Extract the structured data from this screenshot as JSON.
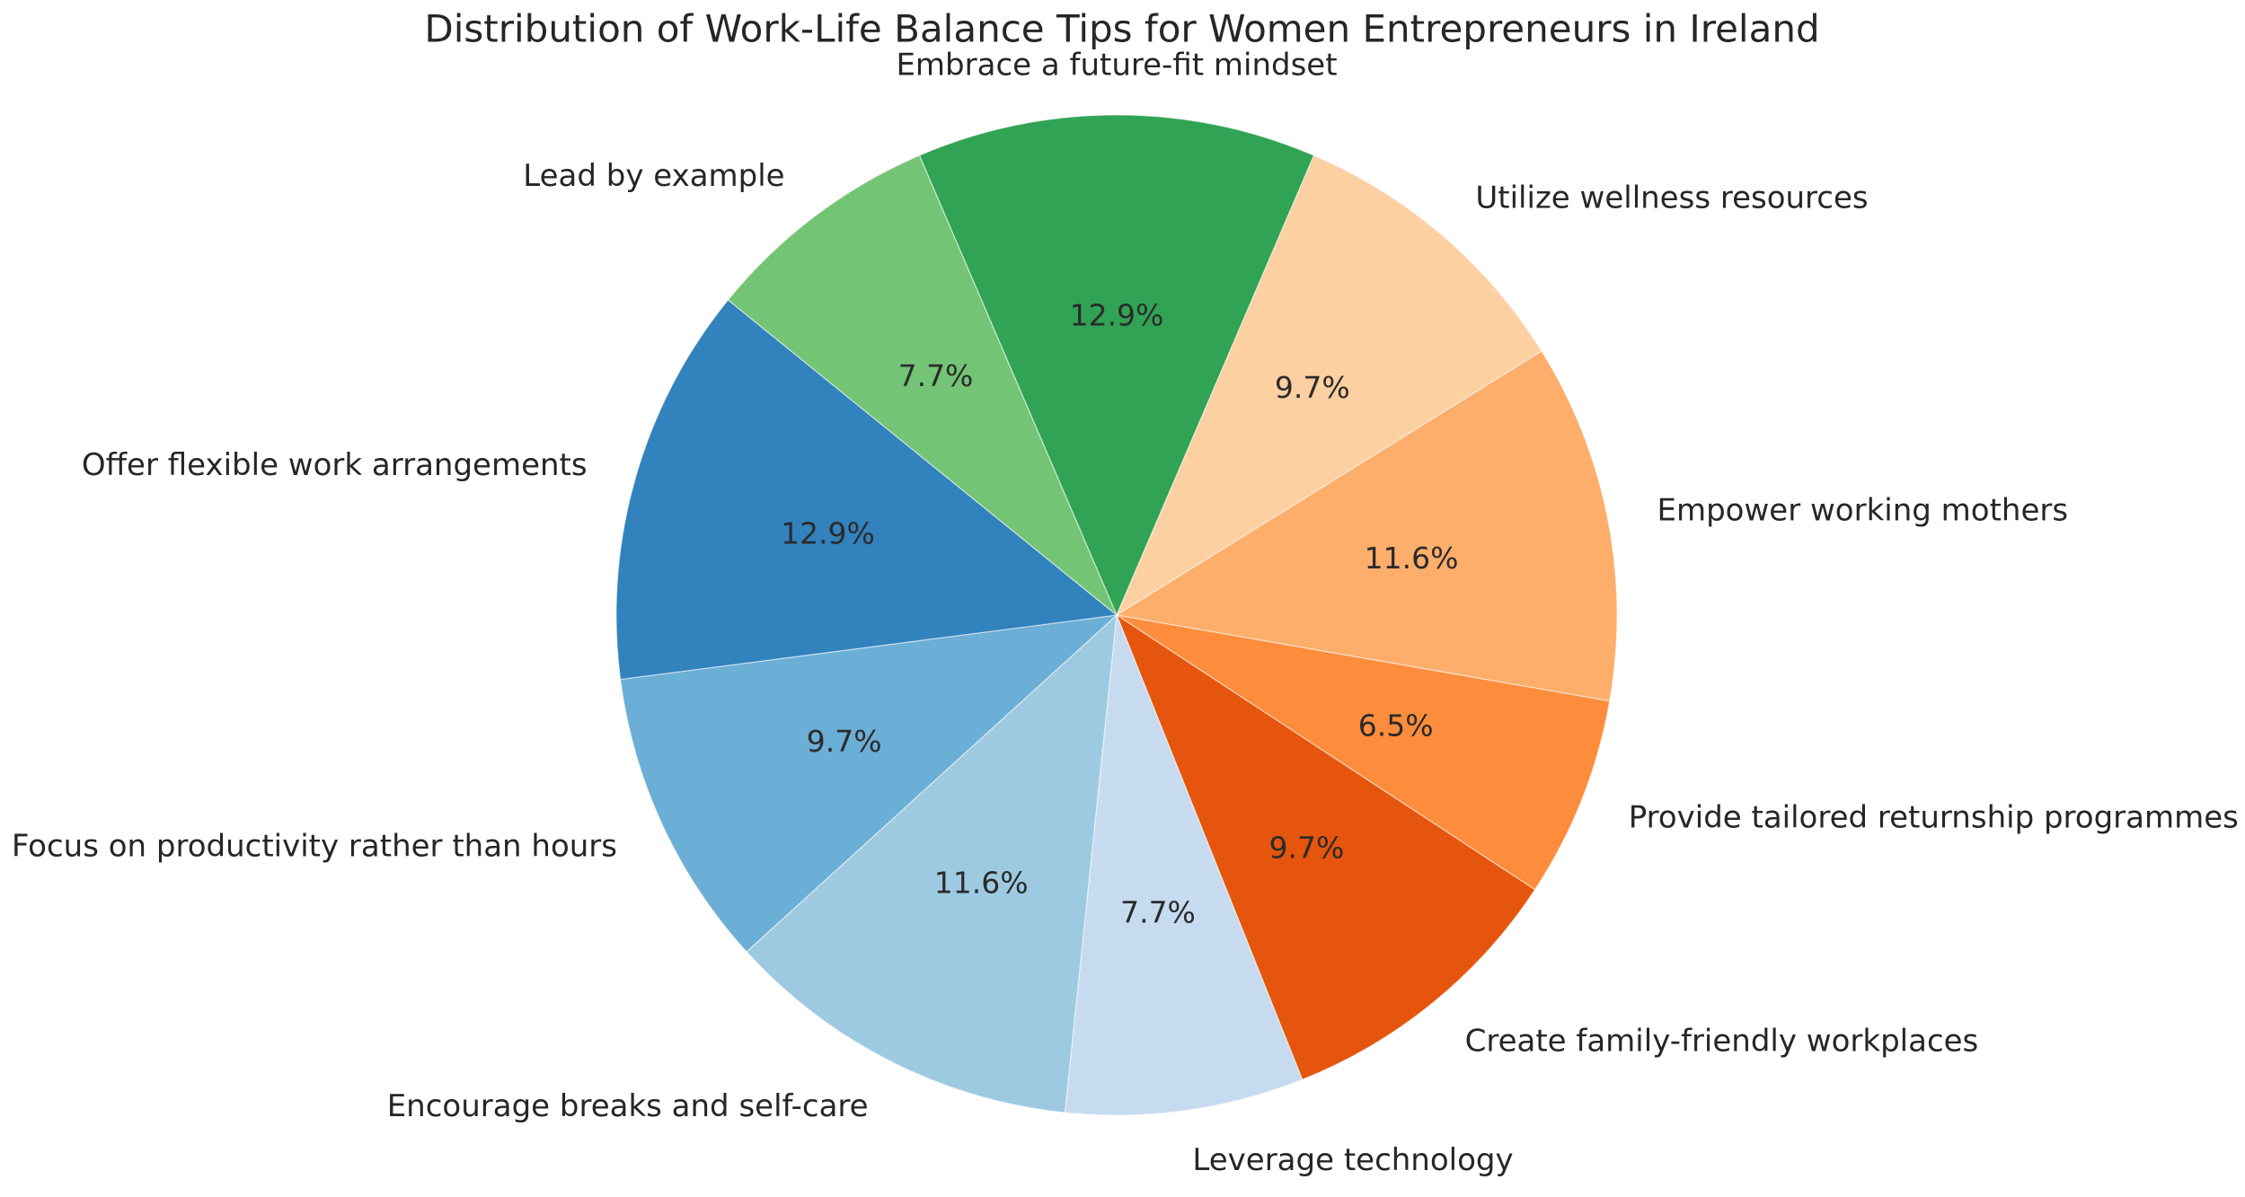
{
  "header": {
    "title": "Distribution of Work-Life Balance Tips for Women Entrepreneurs in Ireland"
  },
  "chart_data": {
    "type": "pie",
    "title": "Distribution of Work-Life Balance Tips for Women Entrepreneurs in Ireland",
    "labels": [
      "Embrace a future-fit mindset",
      "Utilize wellness resources",
      "Empower working mothers",
      "Provide tailored returnship programmes",
      "Create family-friendly workplaces",
      "Leverage technology",
      "Encourage breaks and self-care",
      "Focus on productivity rather than hours",
      "Offer flexible work arrangements",
      "Lead by example"
    ],
    "values": [
      12.9,
      9.7,
      11.6,
      6.5,
      9.7,
      7.7,
      11.6,
      9.7,
      12.9,
      7.7
    ],
    "pct_labels": [
      "12.9%",
      "9.7%",
      "11.6%",
      "6.5%",
      "9.7%",
      "7.7%",
      "11.6%",
      "9.7%",
      "12.9%",
      "7.7%"
    ],
    "colors": [
      "#31a354",
      "#fdd0a2",
      "#fdae6b",
      "#fd8d3c",
      "#e6550d",
      "#c6dbef",
      "#9ecae1",
      "#6baed6",
      "#3182bd",
      "#74c476"
    ],
    "start_angle_deg": 113.22,
    "direction": "clockwise",
    "label_distance": 1.1,
    "pct_distance": 0.6,
    "legend": "none",
    "background": "#ffffff",
    "text_color": "#262626"
  }
}
